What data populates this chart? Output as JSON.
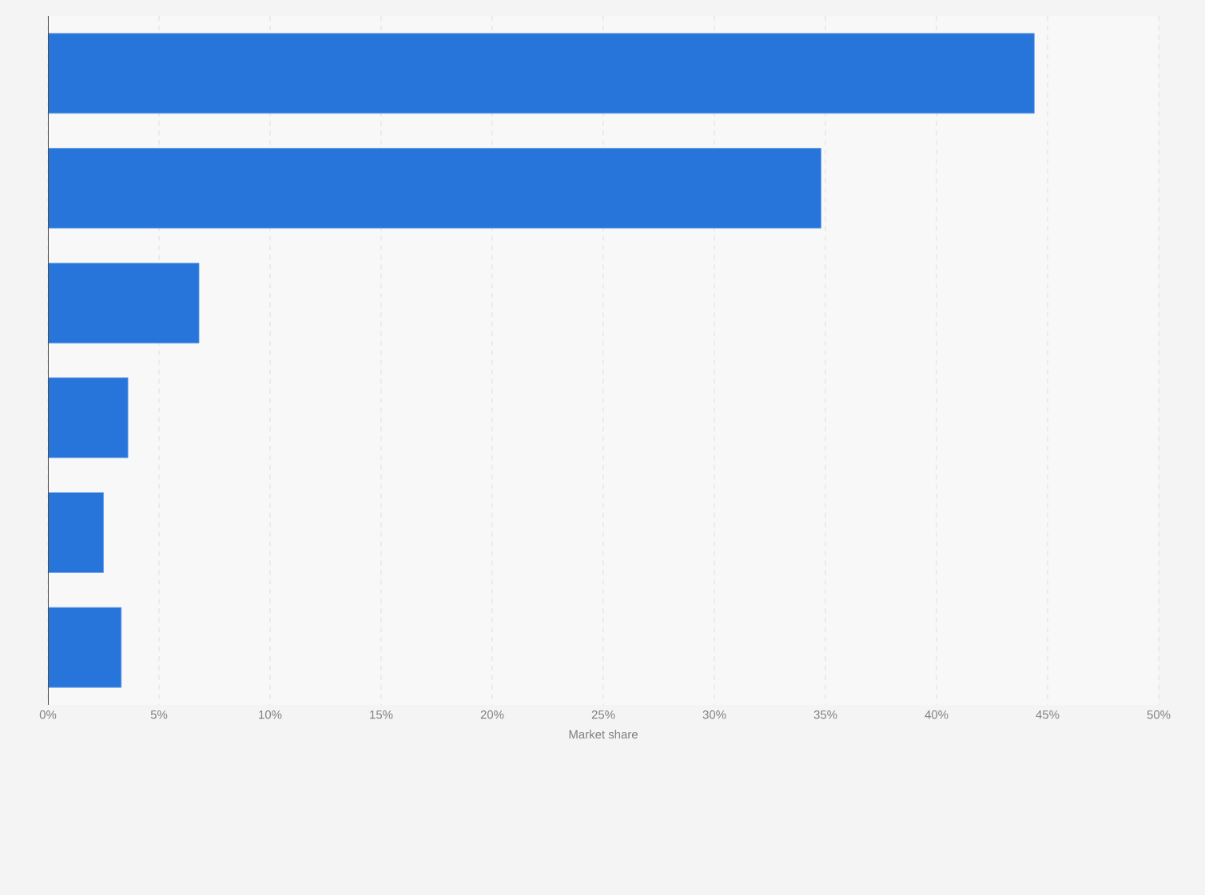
{
  "chart_data": {
    "type": "bar",
    "orientation": "horizontal",
    "xlabel": "Market share",
    "categories": [
      null,
      null,
      null,
      null,
      null,
      null
    ],
    "values": [
      44.4,
      34.8,
      6.8,
      3.6,
      2.5,
      3.3
    ],
    "color": "#2775db",
    "xlim": [
      0,
      50
    ],
    "xticks": [
      {
        "value": 0,
        "label": "0%"
      },
      {
        "value": 5,
        "label": "5%"
      },
      {
        "value": 10,
        "label": "10%"
      },
      {
        "value": 15,
        "label": "15%"
      },
      {
        "value": 20,
        "label": "20%"
      },
      {
        "value": 25,
        "label": "25%"
      },
      {
        "value": 30,
        "label": "30%"
      },
      {
        "value": 35,
        "label": "35%"
      },
      {
        "value": 40,
        "label": "40%"
      },
      {
        "value": 45,
        "label": "45%"
      },
      {
        "value": 50,
        "label": "50%"
      }
    ],
    "grid": "x"
  }
}
